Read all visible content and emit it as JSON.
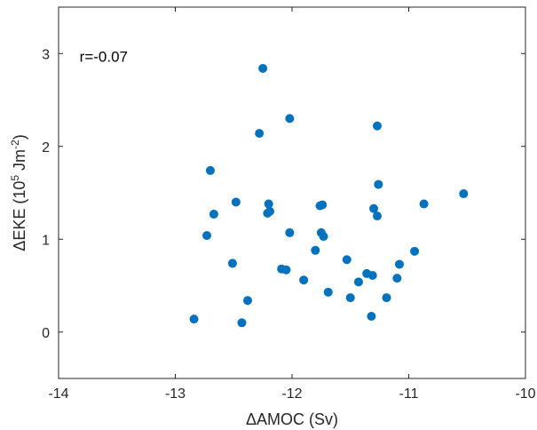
{
  "chart_data": {
    "type": "scatter",
    "xlabel": "ΔAMOC (Sv)",
    "ylabel": {
      "prefix": "ΔEKE (10",
      "sup1": "5",
      "mid": " Jm",
      "sup2": "-2",
      "suffix": ")"
    },
    "xlim": [
      -14,
      -10
    ],
    "ylim": [
      -0.5,
      3.5
    ],
    "xticks": [
      -14,
      -13,
      -12,
      -11,
      -10
    ],
    "xtick_labels": [
      "-14",
      "-13",
      "-12",
      "-11",
      "-10"
    ],
    "yticks": [
      0,
      1,
      2,
      3
    ],
    "ytick_labels": [
      "0",
      "1",
      "2",
      "3"
    ],
    "grid": false,
    "color": "#0072BD",
    "annotation": "r=-0.07",
    "points": [
      {
        "x": -12.84,
        "y": 0.14
      },
      {
        "x": -12.43,
        "y": 0.1
      },
      {
        "x": -12.38,
        "y": 0.34
      },
      {
        "x": -12.25,
        "y": 2.84
      },
      {
        "x": -12.28,
        "y": 2.14
      },
      {
        "x": -12.7,
        "y": 1.74
      },
      {
        "x": -12.67,
        "y": 1.27
      },
      {
        "x": -12.73,
        "y": 1.04
      },
      {
        "x": -12.48,
        "y": 1.4
      },
      {
        "x": -12.51,
        "y": 0.74
      },
      {
        "x": -12.2,
        "y": 1.38
      },
      {
        "x": -12.19,
        "y": 1.3
      },
      {
        "x": -12.21,
        "y": 1.28
      },
      {
        "x": -12.02,
        "y": 2.3
      },
      {
        "x": -12.02,
        "y": 1.07
      },
      {
        "x": -12.09,
        "y": 0.68
      },
      {
        "x": -12.05,
        "y": 0.67
      },
      {
        "x": -11.9,
        "y": 0.56
      },
      {
        "x": -11.8,
        "y": 0.88
      },
      {
        "x": -11.76,
        "y": 1.36
      },
      {
        "x": -11.74,
        "y": 1.37
      },
      {
        "x": -11.75,
        "y": 1.07
      },
      {
        "x": -11.73,
        "y": 1.03
      },
      {
        "x": -11.69,
        "y": 0.43
      },
      {
        "x": -11.53,
        "y": 0.78
      },
      {
        "x": -11.5,
        "y": 0.37
      },
      {
        "x": -11.43,
        "y": 0.54
      },
      {
        "x": -11.36,
        "y": 0.63
      },
      {
        "x": -11.31,
        "y": 0.61
      },
      {
        "x": -11.32,
        "y": 0.17
      },
      {
        "x": -11.3,
        "y": 1.33
      },
      {
        "x": -11.27,
        "y": 2.22
      },
      {
        "x": -11.26,
        "y": 1.59
      },
      {
        "x": -11.27,
        "y": 1.25
      },
      {
        "x": -11.19,
        "y": 0.37
      },
      {
        "x": -11.1,
        "y": 0.58
      },
      {
        "x": -11.08,
        "y": 0.73
      },
      {
        "x": -10.95,
        "y": 0.87
      },
      {
        "x": -10.87,
        "y": 1.38
      },
      {
        "x": -10.53,
        "y": 1.49
      }
    ]
  }
}
